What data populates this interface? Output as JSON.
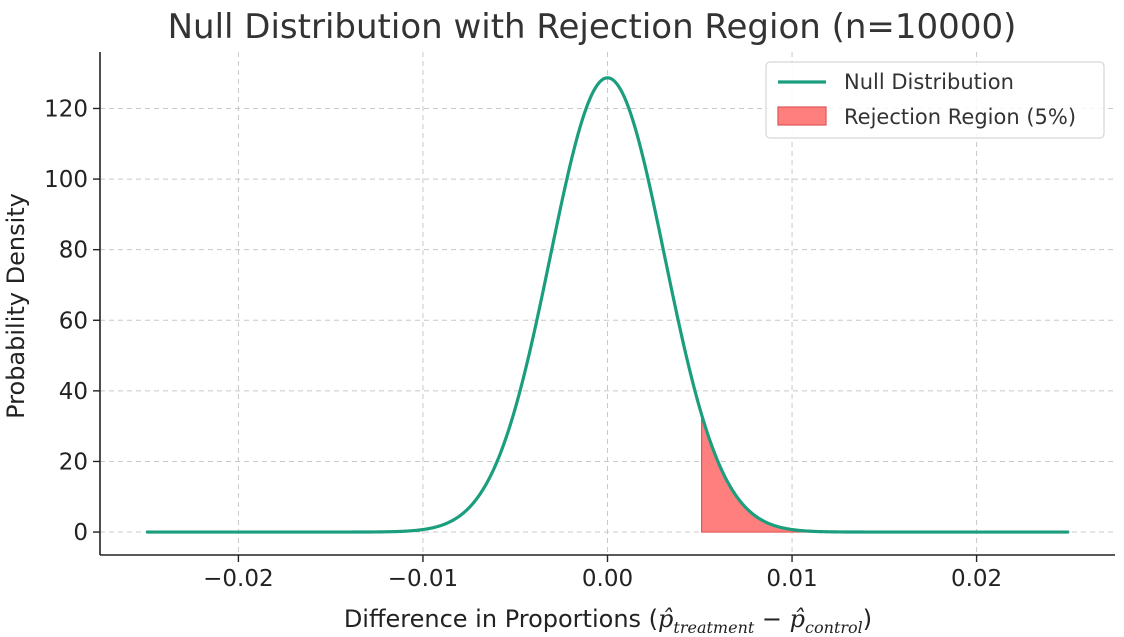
{
  "chart_data": {
    "type": "area",
    "title": "Null Distribution with Rejection Region (n=10000)",
    "xlabel": {
      "prefix": "Difference in Proportions (",
      "term1_base": "p̂",
      "term1_sub": "treatment",
      "operator": " − ",
      "term2_base": "p̂",
      "term2_sub": "control",
      "suffix": ")"
    },
    "ylabel": "Probability Density",
    "xlim": [
      -0.0275,
      0.0275
    ],
    "ylim": [
      -6.5,
      136
    ],
    "xticks": [
      {
        "value": -0.02,
        "label": "−0.02"
      },
      {
        "value": -0.01,
        "label": "−0.01"
      },
      {
        "value": 0.0,
        "label": "0.00"
      },
      {
        "value": 0.01,
        "label": "0.01"
      },
      {
        "value": 0.02,
        "label": "0.02"
      }
    ],
    "yticks": [
      {
        "value": 0,
        "label": "0"
      },
      {
        "value": 20,
        "label": "20"
      },
      {
        "value": 40,
        "label": "40"
      },
      {
        "value": 60,
        "label": "60"
      },
      {
        "value": 80,
        "label": "80"
      },
      {
        "value": 100,
        "label": "100"
      },
      {
        "value": 120,
        "label": "120"
      }
    ],
    "grid": true,
    "legend_position": "top-right",
    "series": [
      {
        "name": "Null Distribution",
        "kind": "line",
        "color": "#1a9e7e",
        "distribution": "normal",
        "mean": 0.0,
        "std": 0.0031,
        "x_range": [
          -0.025,
          0.025
        ]
      },
      {
        "name": "Rejection Region (5%)",
        "kind": "fill",
        "color": "#ff7f7f",
        "edge_color": "#e05555",
        "x_start": 0.0051,
        "x_end": 0.025
      }
    ]
  }
}
